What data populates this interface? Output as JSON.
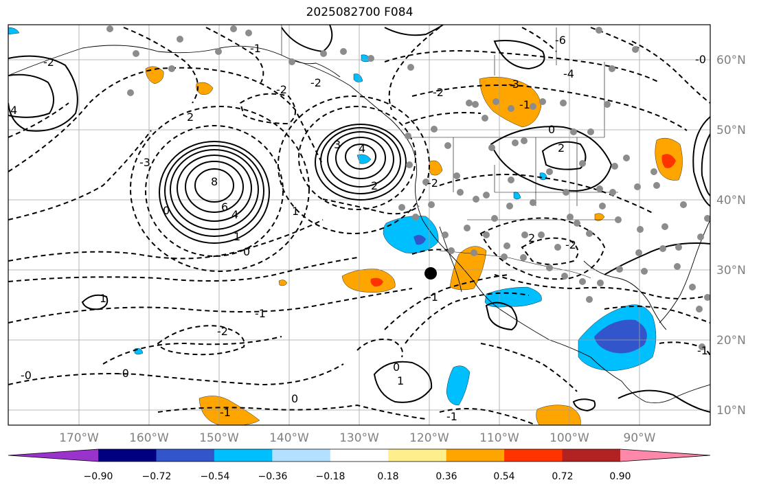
{
  "title": "2025082700 F084",
  "colors": {
    "positive_contour": "#000000",
    "negative_contour": "#000000",
    "grid": "#a0a0a0",
    "station_dot": "#8c8c8c"
  },
  "longitude_labels": [
    "170°W",
    "160°W",
    "150°W",
    "140°W",
    "130°W",
    "120°W",
    "110°W",
    "100°W",
    "90°W"
  ],
  "latitude_labels": [
    "60°N",
    "50°N",
    "40°N",
    "30°N",
    "20°N",
    "10°N"
  ],
  "colorbar": {
    "tick_labels": [
      "−0.90",
      "−0.72",
      "−0.54",
      "−0.36",
      "−0.18",
      "0.18",
      "0.36",
      "0.54",
      "0.72",
      "0.90"
    ],
    "colors": [
      "#9933cc",
      "#000080",
      "#3355cc",
      "#00bfff",
      "#b3e0ff",
      "#ffffff",
      "#ffee8c",
      "#ffa500",
      "#ff3300",
      "#b22222",
      "#ff88aa"
    ]
  },
  "contour_labels": [
    "8",
    "6",
    "4",
    "1",
    "4",
    "3",
    "2",
    "2",
    "0",
    "-2",
    "-2",
    "-3",
    "-2",
    "-1",
    "-2",
    "-0",
    "-1",
    "0",
    "-1",
    "-2",
    "-6",
    "-4",
    "-3",
    "-1",
    "2",
    "0",
    "-2",
    "-2",
    "2",
    "0",
    "1",
    "-1",
    "4",
    "1",
    "-1",
    "-0",
    "-0",
    "1",
    "0",
    "-1"
  ]
}
